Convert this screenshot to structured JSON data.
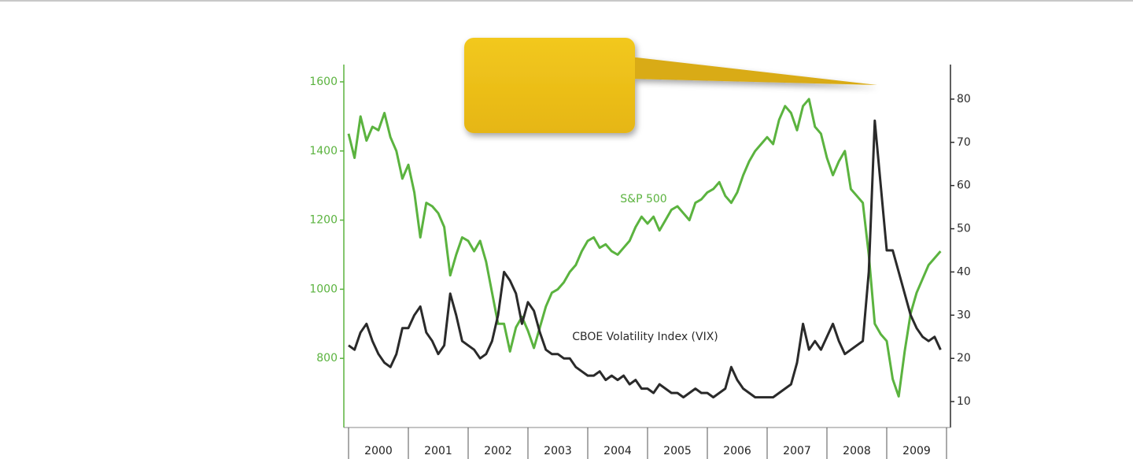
{
  "chart_data": {
    "type": "line",
    "categories": [
      "2000",
      "2001",
      "2002",
      "2003",
      "2004",
      "2005",
      "2006",
      "2007",
      "2008",
      "2009"
    ],
    "xlim": [
      2000,
      2010
    ],
    "x": [
      2000.0,
      2000.1,
      2000.2,
      2000.3,
      2000.4,
      2000.5,
      2000.6,
      2000.7,
      2000.8,
      2000.9,
      2001.0,
      2001.1,
      2001.2,
      2001.3,
      2001.4,
      2001.5,
      2001.6,
      2001.7,
      2001.8,
      2001.9,
      2002.0,
      2002.1,
      2002.2,
      2002.3,
      2002.4,
      2002.5,
      2002.6,
      2002.7,
      2002.8,
      2002.9,
      2003.0,
      2003.1,
      2003.2,
      2003.3,
      2003.4,
      2003.5,
      2003.6,
      2003.7,
      2003.8,
      2003.9,
      2004.0,
      2004.1,
      2004.2,
      2004.3,
      2004.4,
      2004.5,
      2004.6,
      2004.7,
      2004.8,
      2004.9,
      2005.0,
      2005.1,
      2005.2,
      2005.3,
      2005.4,
      2005.5,
      2005.6,
      2005.7,
      2005.8,
      2005.9,
      2006.0,
      2006.1,
      2006.2,
      2006.3,
      2006.4,
      2006.5,
      2006.6,
      2006.7,
      2006.8,
      2006.9,
      2007.0,
      2007.1,
      2007.2,
      2007.3,
      2007.4,
      2007.5,
      2007.6,
      2007.7,
      2007.8,
      2007.9,
      2008.0,
      2008.1,
      2008.2,
      2008.3,
      2008.4,
      2008.5,
      2008.6,
      2008.7,
      2008.8,
      2008.9,
      2009.0,
      2009.1,
      2009.2,
      2009.3,
      2009.4,
      2009.5,
      2009.6,
      2009.7,
      2009.8,
      2009.9
    ],
    "ylim": [
      600,
      1650
    ],
    "yticks": [
      800,
      1000,
      1200,
      1400,
      1600
    ],
    "y2lim": [
      4,
      88
    ],
    "y2ticks": [
      10,
      20,
      30,
      40,
      50,
      60,
      70,
      80
    ],
    "series": [
      {
        "name": "S&P 500",
        "color": "#5bb33f",
        "values": [
          1450,
          1380,
          1500,
          1430,
          1470,
          1460,
          1510,
          1440,
          1400,
          1320,
          1360,
          1280,
          1150,
          1250,
          1240,
          1220,
          1180,
          1040,
          1100,
          1150,
          1140,
          1110,
          1140,
          1080,
          990,
          900,
          900,
          820,
          890,
          920,
          880,
          830,
          890,
          950,
          990,
          1000,
          1020,
          1050,
          1070,
          1110,
          1140,
          1150,
          1120,
          1130,
          1110,
          1100,
          1120,
          1140,
          1180,
          1210,
          1190,
          1210,
          1170,
          1200,
          1230,
          1240,
          1220,
          1200,
          1250,
          1260,
          1280,
          1290,
          1310,
          1270,
          1250,
          1280,
          1330,
          1370,
          1400,
          1420,
          1440,
          1420,
          1490,
          1530,
          1510,
          1460,
          1530,
          1550,
          1470,
          1450,
          1380,
          1330,
          1370,
          1400,
          1290,
          1270,
          1250,
          1100,
          900,
          870,
          850,
          740,
          690,
          820,
          930,
          990,
          1030,
          1070,
          1090,
          1110
        ]
      },
      {
        "name": "CBOE Volatility Index (VIX)",
        "color": "#2a2a2a",
        "axis": "y2",
        "values": [
          23,
          22,
          26,
          28,
          24,
          21,
          19,
          18,
          21,
          27,
          27,
          30,
          32,
          26,
          24,
          21,
          23,
          35,
          30,
          24,
          23,
          22,
          20,
          21,
          24,
          30,
          40,
          38,
          35,
          28,
          33,
          31,
          26,
          22,
          21,
          21,
          20,
          20,
          18,
          17,
          16,
          16,
          17,
          15,
          16,
          15,
          16,
          14,
          15,
          13,
          13,
          12,
          14,
          13,
          12,
          12,
          11,
          12,
          13,
          12,
          12,
          11,
          12,
          13,
          18,
          15,
          13,
          12,
          11,
          11,
          11,
          11,
          12,
          13,
          14,
          19,
          28,
          22,
          24,
          22,
          25,
          28,
          24,
          21,
          22,
          23,
          24,
          40,
          75,
          60,
          45,
          45,
          40,
          35,
          30,
          27,
          25,
          24,
          25,
          22
        ]
      }
    ]
  }
}
